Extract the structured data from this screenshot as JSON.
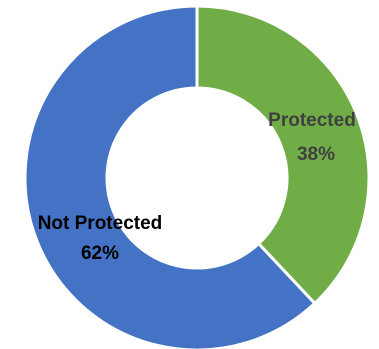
{
  "chart_data": {
    "type": "pie",
    "variant": "donut",
    "title": "",
    "legend": "none",
    "slices": [
      {
        "label": "Protected",
        "value": 38,
        "value_label": "38%",
        "color": "#70ad47",
        "label_color": "#404040"
      },
      {
        "label": "Not Protected",
        "value": 62,
        "value_label": "62%",
        "color": "#4472c4",
        "label_color": "#000000"
      }
    ],
    "start": "top",
    "direction": "clockwise",
    "separator_color": "#ffffff"
  }
}
